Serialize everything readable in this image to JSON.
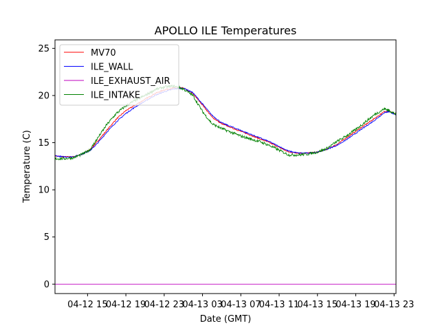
{
  "chart_data": {
    "type": "line",
    "title": "APOLLO ILE Temperatures",
    "xlabel": "Date (GMT)",
    "ylabel": "Temperature (C)",
    "xlim": [
      11.6,
      47.2
    ],
    "ylim": [
      -1.0,
      25.9
    ],
    "yticks": [
      0,
      5,
      10,
      15,
      20,
      25
    ],
    "xticks": [
      {
        "hour": 15,
        "label": "04-12 15"
      },
      {
        "hour": 19,
        "label": "04-12 19"
      },
      {
        "hour": 23,
        "label": "04-12 23"
      },
      {
        "hour": 27,
        "label": "04-13 03"
      },
      {
        "hour": 31,
        "label": "04-13 07"
      },
      {
        "hour": 35,
        "label": "04-13 11"
      },
      {
        "hour": 39,
        "label": "04-13 15"
      },
      {
        "hour": 43,
        "label": "04-13 19"
      },
      {
        "hour": 47,
        "label": "04-13 23"
      }
    ],
    "grid": false,
    "legend_position": "top-left",
    "x_units": "hours since 04-12 00:00 GMT",
    "series": [
      {
        "name": "MV70",
        "color": "#ff0000",
        "x": [
          11.6,
          12.5,
          13.5,
          14.5,
          15.3,
          16.0,
          17.0,
          18.0,
          19.0,
          20.0,
          21.0,
          22.0,
          23.0,
          24.0,
          25.0,
          26.0,
          27.0,
          28.0,
          29.0,
          30.0,
          31.0,
          32.0,
          33.0,
          34.0,
          35.0,
          36.0,
          37.0,
          38.0,
          39.0,
          40.0,
          41.0,
          42.0,
          43.0,
          44.0,
          45.0,
          46.0,
          46.5,
          47.2
        ],
        "y": [
          13.6,
          13.5,
          13.5,
          13.8,
          14.3,
          15.1,
          16.3,
          17.5,
          18.4,
          19.0,
          19.6,
          20.2,
          20.6,
          20.8,
          20.8,
          20.2,
          19.0,
          17.7,
          17.0,
          16.6,
          16.2,
          15.8,
          15.4,
          15.0,
          14.5,
          14.0,
          13.9,
          13.9,
          14.0,
          14.3,
          14.8,
          15.5,
          16.2,
          16.9,
          17.6,
          18.3,
          18.3,
          18.0
        ]
      },
      {
        "name": "ILE_WALL",
        "color": "#0000ff",
        "x": [
          11.6,
          12.5,
          13.5,
          14.5,
          15.3,
          16.0,
          17.0,
          18.0,
          19.0,
          20.0,
          21.0,
          22.0,
          23.0,
          24.0,
          25.0,
          26.0,
          27.0,
          28.0,
          29.0,
          30.0,
          31.0,
          32.0,
          33.0,
          34.0,
          35.0,
          36.0,
          37.0,
          38.0,
          39.0,
          40.0,
          41.0,
          42.0,
          43.0,
          44.0,
          45.0,
          46.0,
          46.5,
          47.2
        ],
        "y": [
          13.6,
          13.5,
          13.5,
          13.8,
          14.2,
          14.9,
          16.1,
          17.2,
          18.1,
          18.8,
          19.4,
          20.0,
          20.4,
          20.7,
          20.8,
          20.3,
          19.1,
          17.9,
          17.1,
          16.7,
          16.3,
          15.9,
          15.5,
          15.1,
          14.6,
          14.1,
          13.9,
          13.9,
          14.0,
          14.3,
          14.7,
          15.3,
          16.0,
          16.7,
          17.4,
          18.2,
          18.3,
          17.9
        ]
      },
      {
        "name": "ILE_EXHAUST_AIR",
        "color": "#bf00bf",
        "x": [
          11.6,
          47.2
        ],
        "y": [
          0.0,
          0.0
        ]
      },
      {
        "name": "ILE_INTAKE",
        "color": "#008000",
        "x": [
          11.6,
          12.5,
          13.5,
          14.5,
          15.3,
          16.0,
          17.0,
          18.0,
          19.0,
          20.0,
          21.0,
          22.0,
          23.0,
          24.0,
          25.0,
          26.0,
          27.0,
          28.0,
          29.0,
          30.0,
          31.0,
          32.0,
          33.0,
          34.0,
          35.0,
          36.0,
          37.0,
          38.0,
          39.0,
          40.0,
          41.0,
          42.0,
          43.0,
          44.0,
          45.0,
          46.0,
          46.5,
          47.2
        ],
        "y": [
          13.3,
          13.3,
          13.4,
          13.8,
          14.3,
          15.4,
          16.9,
          18.1,
          18.9,
          19.5,
          20.0,
          20.6,
          20.9,
          21.0,
          20.7,
          20.0,
          18.3,
          17.0,
          16.5,
          16.1,
          15.7,
          15.4,
          15.1,
          14.7,
          14.2,
          13.7,
          13.7,
          13.8,
          14.0,
          14.4,
          15.1,
          15.7,
          16.4,
          17.2,
          18.0,
          18.6,
          18.4,
          18.0
        ]
      }
    ]
  }
}
